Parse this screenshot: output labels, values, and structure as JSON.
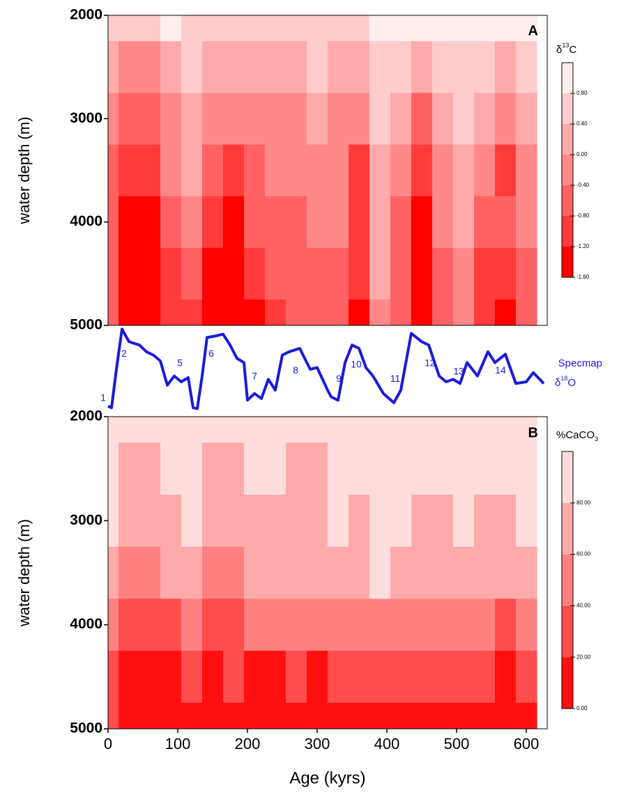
{
  "chart_data": [
    {
      "type": "heatmap",
      "panel_label": "A",
      "ylabel": "water depth (m)",
      "colorbar_title": [
        "δ",
        "13",
        "C"
      ],
      "x": [
        0,
        30,
        60,
        90,
        120,
        150,
        180,
        210,
        240,
        270,
        300,
        330,
        360,
        390,
        420,
        450,
        480,
        510,
        540,
        570,
        600
      ],
      "y": [
        2000,
        2500,
        3000,
        3500,
        4000,
        4500,
        5000
      ],
      "z": [
        [
          0.4,
          0.0,
          -0.4,
          -0.8,
          -0.8,
          -0.8,
          -0.8
        ],
        [
          0.4,
          -0.4,
          -0.8,
          -1.2,
          -1.4,
          -1.4,
          -1.4
        ],
        [
          0.4,
          -0.4,
          -0.8,
          -1.2,
          -1.4,
          -1.4,
          -1.4
        ],
        [
          0.8,
          0.0,
          -0.4,
          -0.4,
          -0.8,
          -1.2,
          -1.2
        ],
        [
          0.4,
          0.4,
          0.0,
          0.0,
          -0.4,
          -0.8,
          -1.2
        ],
        [
          0.4,
          0.0,
          -0.4,
          -0.8,
          -1.2,
          -1.4,
          -1.4
        ],
        [
          0.4,
          0.0,
          -0.4,
          -1.2,
          -1.4,
          -1.4,
          -1.4
        ],
        [
          0.4,
          0.0,
          -0.4,
          -0.8,
          -0.8,
          -1.2,
          -1.4
        ],
        [
          0.4,
          0.0,
          -0.4,
          -0.4,
          -0.8,
          -0.8,
          -1.2
        ],
        [
          0.4,
          0.0,
          -0.4,
          -0.4,
          -0.8,
          -0.8,
          -0.8
        ],
        [
          0.4,
          0.4,
          0.0,
          -0.4,
          -0.4,
          -0.8,
          -0.8
        ],
        [
          0.4,
          0.0,
          -0.4,
          -0.4,
          -0.4,
          -0.8,
          -0.8
        ],
        [
          0.4,
          0.0,
          -0.4,
          -1.2,
          -1.2,
          -1.2,
          -1.4
        ],
        [
          0.8,
          0.4,
          0.4,
          0.0,
          0.0,
          0.0,
          -0.4
        ],
        [
          0.8,
          0.4,
          0.0,
          -0.4,
          -0.8,
          -0.8,
          -0.8
        ],
        [
          0.8,
          0.0,
          -0.8,
          -1.2,
          -1.4,
          -1.4,
          -1.4
        ],
        [
          0.8,
          0.4,
          0.0,
          -0.4,
          -0.4,
          -0.8,
          -0.8
        ],
        [
          0.8,
          0.4,
          0.4,
          0.0,
          0.0,
          -0.4,
          -0.4
        ],
        [
          0.8,
          0.4,
          0.0,
          -0.4,
          -0.8,
          -1.2,
          -1.2
        ],
        [
          0.8,
          0.0,
          -0.4,
          -1.2,
          -0.8,
          -1.2,
          -1.4
        ],
        [
          0.8,
          0.4,
          0.0,
          -0.4,
          -0.4,
          -0.8,
          -0.8
        ]
      ],
      "levels": [
        -1.6,
        -1.2,
        -0.8,
        -0.4,
        0,
        0.4,
        0.8,
        1.2
      ],
      "colors": [
        "#ff0000",
        "#ff3b3b",
        "#ff6262",
        "#ff8989",
        "#ffaaaa",
        "#ffcccc",
        "#ffeeee"
      ],
      "cbticks": [
        {
          "value": -1.6,
          "label": "-1.60"
        },
        {
          "value": -1.2,
          "label": "-1.20"
        },
        {
          "value": -0.8,
          "label": "-0.80"
        },
        {
          "value": -0.4,
          "label": "-0.40"
        },
        {
          "value": 0,
          "label": "0.00"
        },
        {
          "value": 0.4,
          "label": "0.40"
        },
        {
          "value": 0.8,
          "label": "0.80"
        }
      ],
      "xlim": [
        0,
        630
      ],
      "ylim": [
        2000,
        5000
      ],
      "yticks": [
        2000,
        3000,
        4000,
        5000
      ]
    },
    {
      "type": "line",
      "series_name": "Specmap",
      "label": [
        "δ",
        "18",
        "O"
      ],
      "color": "#1a1adb",
      "xlim": [
        0,
        630
      ],
      "x": [
        0,
        5,
        12,
        20,
        30,
        45,
        55,
        65,
        75,
        85,
        95,
        105,
        115,
        122,
        128,
        135,
        142,
        155,
        165,
        175,
        185,
        195,
        200,
        210,
        220,
        230,
        240,
        250,
        260,
        275,
        290,
        300,
        315,
        320,
        330,
        340,
        350,
        360,
        370,
        380,
        395,
        410,
        420,
        435,
        450,
        460,
        475,
        485,
        495,
        505,
        515,
        530,
        545,
        555,
        570,
        585,
        600,
        610,
        625
      ],
      "values": [
        0.6,
        0.4,
        5.0,
        9.8,
        8.3,
        7.9,
        7.1,
        6.7,
        6.0,
        3.1,
        4.2,
        3.5,
        4.0,
        0.4,
        0.3,
        4.2,
        8.8,
        9.0,
        9.2,
        7.9,
        6.3,
        5.8,
        1.3,
        2.1,
        1.5,
        3.8,
        2.5,
        6.7,
        7.1,
        7.5,
        5.0,
        5.2,
        2.5,
        1.7,
        1.3,
        5.8,
        7.9,
        7.5,
        5.2,
        4.2,
        2.1,
        1.0,
        2.5,
        9.3,
        8.3,
        7.9,
        4.2,
        3.5,
        3.8,
        3.3,
        5.8,
        4.2,
        7.1,
        5.8,
        6.8,
        3.3,
        3.5,
        4.6,
        3.3
      ],
      "annotations": [
        {
          "text": "1",
          "x": -7,
          "y": 1.5
        },
        {
          "text": "2",
          "x": 23,
          "y": 6.8
        },
        {
          "text": "5",
          "x": 103,
          "y": 5.7
        },
        {
          "text": "6",
          "x": 148,
          "y": 6.8
        },
        {
          "text": "7",
          "x": 210,
          "y": 4.1
        },
        {
          "text": "8",
          "x": 269,
          "y": 4.8
        },
        {
          "text": "9",
          "x": 331,
          "y": 3.8
        },
        {
          "text": "10",
          "x": 356,
          "y": 5.5
        },
        {
          "text": "11",
          "x": 412,
          "y": 3.8
        },
        {
          "text": "12",
          "x": 462,
          "y": 5.7
        },
        {
          "text": "13",
          "x": 503,
          "y": 4.7
        },
        {
          "text": "14",
          "x": 563,
          "y": 4.8
        }
      ]
    },
    {
      "type": "heatmap",
      "panel_label": "B",
      "ylabel": "water depth (m)",
      "xlabel": "Age (kyrs)",
      "colorbar_title": [
        "%CaCO",
        "3"
      ],
      "x": [
        0,
        30,
        60,
        90,
        120,
        150,
        180,
        210,
        240,
        270,
        300,
        330,
        360,
        390,
        420,
        450,
        480,
        510,
        540,
        570,
        600
      ],
      "y": [
        2000,
        2500,
        3000,
        3500,
        4000,
        4500,
        5000
      ],
      "z": [
        [
          90,
          90,
          90,
          70,
          50,
          30,
          30
        ],
        [
          90,
          70,
          70,
          50,
          30,
          15,
          15
        ],
        [
          90,
          70,
          70,
          50,
          30,
          15,
          15
        ],
        [
          90,
          90,
          70,
          70,
          30,
          15,
          15
        ],
        [
          90,
          90,
          90,
          70,
          50,
          30,
          15
        ],
        [
          90,
          70,
          70,
          50,
          30,
          15,
          15
        ],
        [
          90,
          70,
          70,
          50,
          30,
          30,
          15
        ],
        [
          90,
          90,
          70,
          70,
          50,
          15,
          5
        ],
        [
          90,
          90,
          70,
          70,
          50,
          15,
          15
        ],
        [
          90,
          70,
          70,
          70,
          50,
          30,
          15
        ],
        [
          90,
          70,
          70,
          70,
          50,
          15,
          5
        ],
        [
          90,
          90,
          90,
          70,
          50,
          30,
          15
        ],
        [
          90,
          90,
          70,
          70,
          50,
          30,
          15
        ],
        [
          90,
          90,
          90,
          90,
          50,
          30,
          5
        ],
        [
          90,
          90,
          90,
          70,
          50,
          30,
          15
        ],
        [
          90,
          90,
          70,
          70,
          50,
          30,
          15
        ],
        [
          90,
          90,
          70,
          70,
          50,
          30,
          5
        ],
        [
          90,
          90,
          90,
          70,
          50,
          30,
          15
        ],
        [
          90,
          90,
          70,
          70,
          50,
          30,
          15
        ],
        [
          90,
          90,
          70,
          70,
          30,
          15,
          5
        ],
        [
          90,
          90,
          90,
          70,
          50,
          30,
          15
        ]
      ],
      "levels": [
        0,
        20,
        40,
        60,
        80,
        100
      ],
      "colors": [
        "#ff1010",
        "#ff4d4d",
        "#ff8080",
        "#ffaaaa",
        "#ffdddd"
      ],
      "cbticks": [
        {
          "value": 0,
          "label": "0.00"
        },
        {
          "value": 20,
          "label": "20.00"
        },
        {
          "value": 40,
          "label": "40.00"
        },
        {
          "value": 60,
          "label": "60.00"
        },
        {
          "value": 80,
          "label": "80.00"
        }
      ],
      "xlim": [
        0,
        630
      ],
      "ylim": [
        2000,
        5000
      ],
      "yticks": [
        2000,
        3000,
        4000,
        5000
      ],
      "xticks": [
        0,
        100,
        200,
        300,
        400,
        500,
        600
      ]
    }
  ]
}
